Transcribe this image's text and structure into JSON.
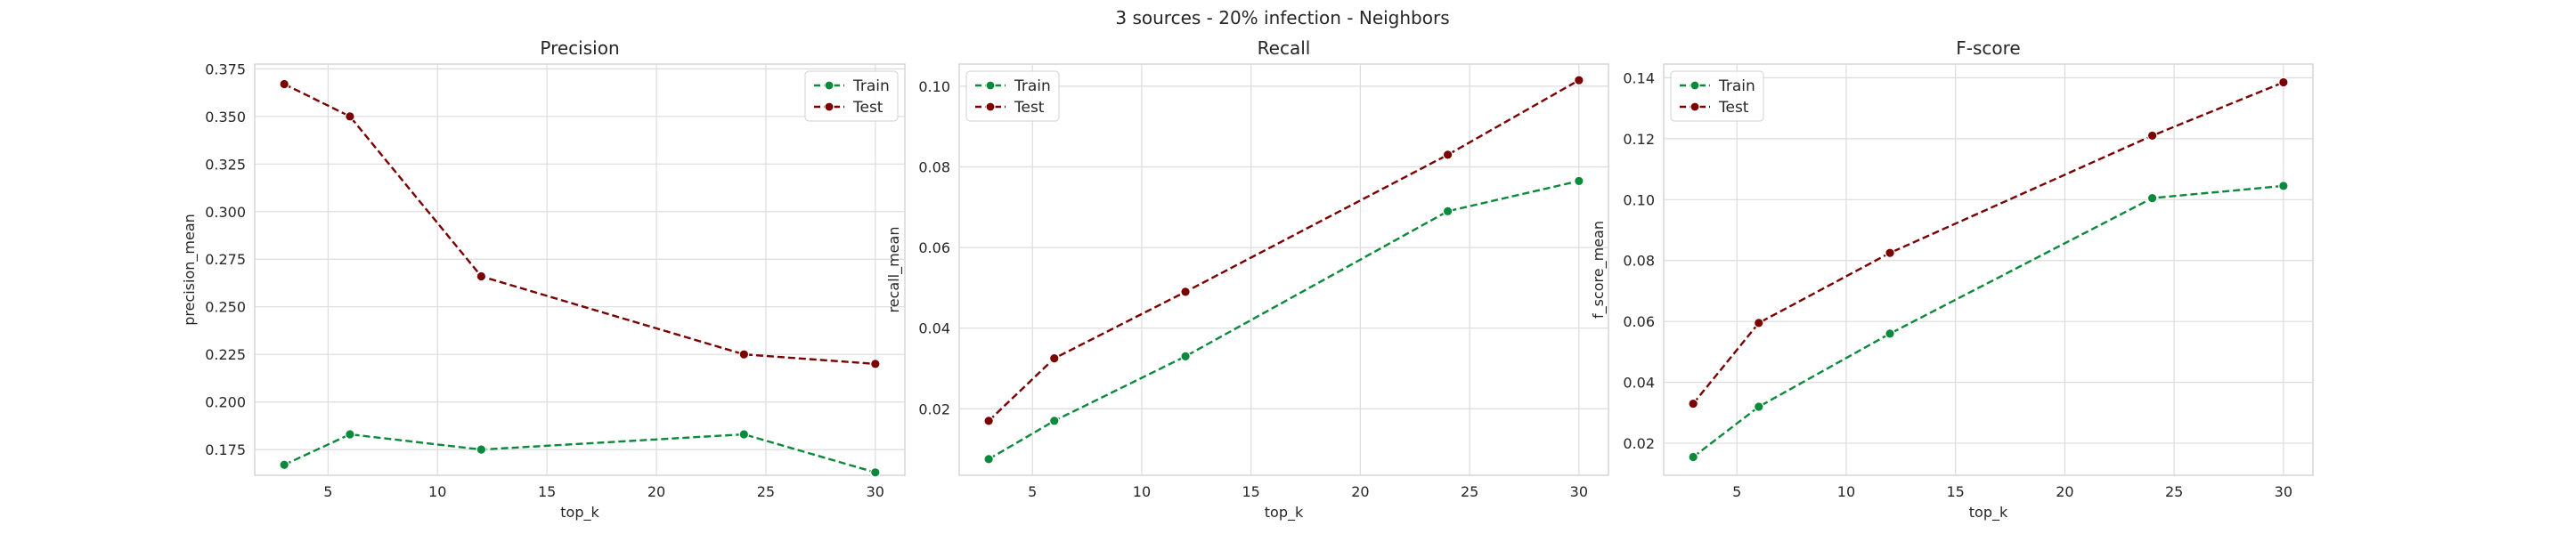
{
  "figure": {
    "suptitle": "3 sources - 20% infection - Neighbors"
  },
  "chart_data": [
    {
      "type": "line",
      "title": "Precision",
      "xlabel": "top_k",
      "ylabel": "precision_mean",
      "x": [
        3,
        6,
        12,
        24,
        30
      ],
      "xlim": [
        1.65,
        31.35
      ],
      "ylim": [
        0.1615,
        0.3775
      ],
      "xticks": [
        5,
        10,
        15,
        20,
        25,
        30
      ],
      "yticks": [
        0.175,
        0.2,
        0.225,
        0.25,
        0.275,
        0.3,
        0.325,
        0.35,
        0.375
      ],
      "ytick_labels": [
        "0.175",
        "0.200",
        "0.225",
        "0.250",
        "0.275",
        "0.300",
        "0.325",
        "0.350",
        "0.375"
      ],
      "grid": true,
      "legend": "top-right",
      "series": [
        {
          "name": "Train",
          "color": "#0a8a3a",
          "values": [
            0.167,
            0.183,
            0.175,
            0.183,
            0.163
          ]
        },
        {
          "name": "Test",
          "color": "#7b0000",
          "values": [
            0.367,
            0.35,
            0.266,
            0.225,
            0.22
          ]
        }
      ]
    },
    {
      "type": "line",
      "title": "Recall",
      "xlabel": "top_k",
      "ylabel": "recall_mean",
      "x": [
        3,
        6,
        12,
        24,
        30
      ],
      "xlim": [
        1.65,
        31.35
      ],
      "ylim": [
        0.0035,
        0.1055
      ],
      "xticks": [
        5,
        10,
        15,
        20,
        25,
        30
      ],
      "yticks": [
        0.02,
        0.04,
        0.06,
        0.08,
        0.1
      ],
      "ytick_labels": [
        "0.02",
        "0.04",
        "0.06",
        "0.08",
        "0.10"
      ],
      "grid": true,
      "legend": "top-left",
      "series": [
        {
          "name": "Train",
          "color": "#0a8a3a",
          "values": [
            0.0075,
            0.017,
            0.033,
            0.069,
            0.0765
          ]
        },
        {
          "name": "Test",
          "color": "#7b0000",
          "values": [
            0.017,
            0.0325,
            0.049,
            0.083,
            0.1015
          ]
        }
      ]
    },
    {
      "type": "line",
      "title": "F-score",
      "xlabel": "top_k",
      "ylabel": "f_score_mean",
      "x": [
        3,
        6,
        12,
        24,
        30
      ],
      "xlim": [
        1.65,
        31.35
      ],
      "ylim": [
        0.0095,
        0.1445
      ],
      "xticks": [
        5,
        10,
        15,
        20,
        25,
        30
      ],
      "yticks": [
        0.02,
        0.04,
        0.06,
        0.08,
        0.1,
        0.12,
        0.14
      ],
      "ytick_labels": [
        "0.02",
        "0.04",
        "0.06",
        "0.08",
        "0.10",
        "0.12",
        "0.14"
      ],
      "grid": true,
      "legend": "top-left",
      "series": [
        {
          "name": "Train",
          "color": "#0a8a3a",
          "values": [
            0.0155,
            0.032,
            0.056,
            0.1005,
            0.1045
          ]
        },
        {
          "name": "Test",
          "color": "#7b0000",
          "values": [
            0.033,
            0.0595,
            0.0825,
            0.121,
            0.1385
          ]
        }
      ]
    }
  ]
}
